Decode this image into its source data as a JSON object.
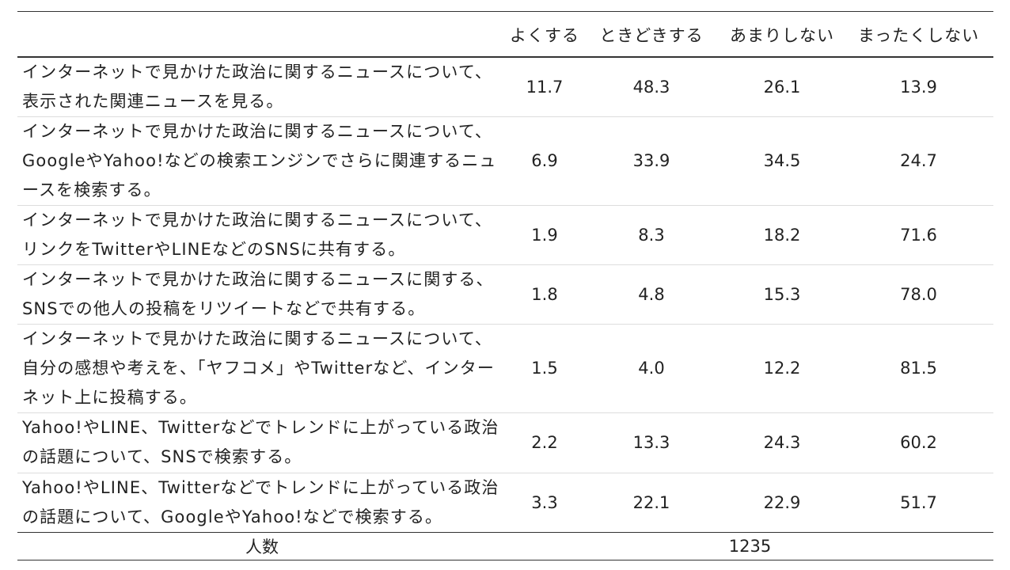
{
  "table": {
    "columns": [
      "よくする",
      "ときどきする",
      "あまりしない",
      "まったくしない"
    ],
    "rows": [
      {
        "label": "インターネットで見かけた政治に関するニュースについて、表示された関連ニュースを見る。",
        "values": [
          "11.7",
          "48.3",
          "26.1",
          "13.9"
        ]
      },
      {
        "label": "インターネットで見かけた政治に関するニュースについて、GoogleやYahoo!などの検索エンジンでさらに関連するニュースを検索する。",
        "values": [
          "6.9",
          "33.9",
          "34.5",
          "24.7"
        ]
      },
      {
        "label": "インターネットで見かけた政治に関するニュースについて、リンクをTwitterやLINEなどのSNSに共有する。",
        "values": [
          "1.9",
          "8.3",
          "18.2",
          "71.6"
        ]
      },
      {
        "label": "インターネットで見かけた政治に関するニュースに関する、SNSでの他人の投稿をリツイートなどで共有する。",
        "values": [
          "1.8",
          "4.8",
          "15.3",
          "78.0"
        ]
      },
      {
        "label": "インターネットで見かけた政治に関するニュースについて、自分の感想や考えを、「ヤフコメ」やTwitterなど、インターネット上に投稿する。",
        "values": [
          "1.5",
          "4.0",
          "12.2",
          "81.5"
        ]
      },
      {
        "label": "Yahoo!やLINE、Twitterなどでトレンドに上がっている政治の話題について、SNSで検索する。",
        "values": [
          "2.2",
          "13.3",
          "24.3",
          "60.2"
        ]
      },
      {
        "label": "Yahoo!やLINE、Twitterなどでトレンドに上がっている政治の話題について、GoogleやYahoo!などで検索する。",
        "values": [
          "3.3",
          "22.1",
          "22.9",
          "51.7"
        ]
      }
    ],
    "footer": {
      "label": "人数",
      "value": "1235"
    }
  }
}
